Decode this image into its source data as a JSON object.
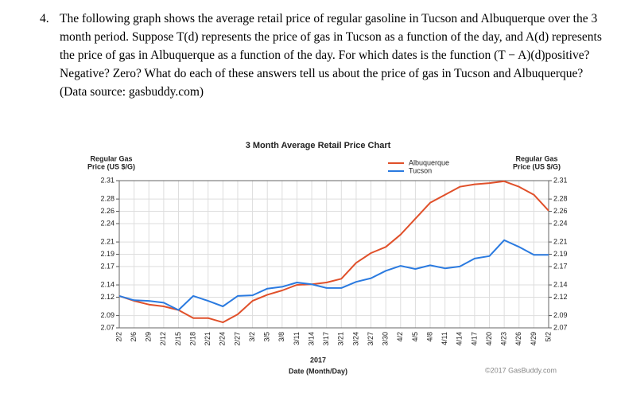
{
  "question": {
    "number": "4.",
    "text": "The following graph shows the average retail price of regular gasoline in Tucson and Albuquerque over the 3 month period. Suppose T(d) represents the price of gas in Tucson as a function of the day, and A(d) represents the price of gas in Albuquerque as a function of the day. For which dates is the function (T − A)(d)positive? Negative? Zero? What do each of these answers tell us about the price of gas in Tucson and Albuquerque? (Data source: gasbuddy.com)"
  },
  "chart_data": {
    "type": "line",
    "title": "3 Month Average Retail Price Chart",
    "y_label": [
      "Regular Gas",
      "Price (US $/G)"
    ],
    "y2_label": [
      "Regular Gas",
      "Price (US $/G)"
    ],
    "x_label": [
      "2017",
      "Date (Month/Day)"
    ],
    "credit": "©2017 GasBuddy.com",
    "categories": [
      "2/2",
      "2/6",
      "2/9",
      "2/12",
      "2/15",
      "2/18",
      "2/21",
      "2/24",
      "2/27",
      "3/2",
      "3/5",
      "3/8",
      "3/11",
      "3/14",
      "3/17",
      "3/21",
      "3/24",
      "3/27",
      "3/30",
      "4/2",
      "4/5",
      "4/8",
      "4/11",
      "4/14",
      "4/17",
      "4/20",
      "4/23",
      "4/26",
      "4/29",
      "5/2"
    ],
    "series": [
      {
        "name": "Albuquerque",
        "color": "#e0502a",
        "values": [
          2.122,
          2.114,
          2.108,
          2.105,
          2.099,
          2.086,
          2.086,
          2.079,
          2.092,
          2.114,
          2.124,
          2.131,
          2.14,
          2.141,
          2.144,
          2.15,
          2.176,
          2.192,
          2.202,
          2.222,
          2.248,
          2.274,
          2.287,
          2.3,
          2.304,
          2.306,
          2.309,
          2.3,
          2.287,
          2.261
        ]
      },
      {
        "name": "Tucson",
        "color": "#2a7ae0",
        "values": [
          2.122,
          2.115,
          2.114,
          2.111,
          2.099,
          2.122,
          2.114,
          2.105,
          2.122,
          2.123,
          2.134,
          2.137,
          2.144,
          2.141,
          2.135,
          2.135,
          2.145,
          2.151,
          2.163,
          2.171,
          2.166,
          2.172,
          2.167,
          2.17,
          2.183,
          2.187,
          2.213,
          2.202,
          2.189,
          2.189
        ]
      }
    ],
    "ylim": [
      2.07,
      2.31
    ],
    "yticks": [
      2.07,
      2.09,
      2.12,
      2.14,
      2.17,
      2.19,
      2.21,
      2.24,
      2.26,
      2.28,
      2.31
    ],
    "y2lim": [
      2.07,
      2.31
    ],
    "y2ticks": [
      2.07,
      2.09,
      2.12,
      2.14,
      2.17,
      2.19,
      2.21,
      2.24,
      2.26,
      2.28,
      2.31
    ],
    "grid": true,
    "legend": "top-right"
  }
}
